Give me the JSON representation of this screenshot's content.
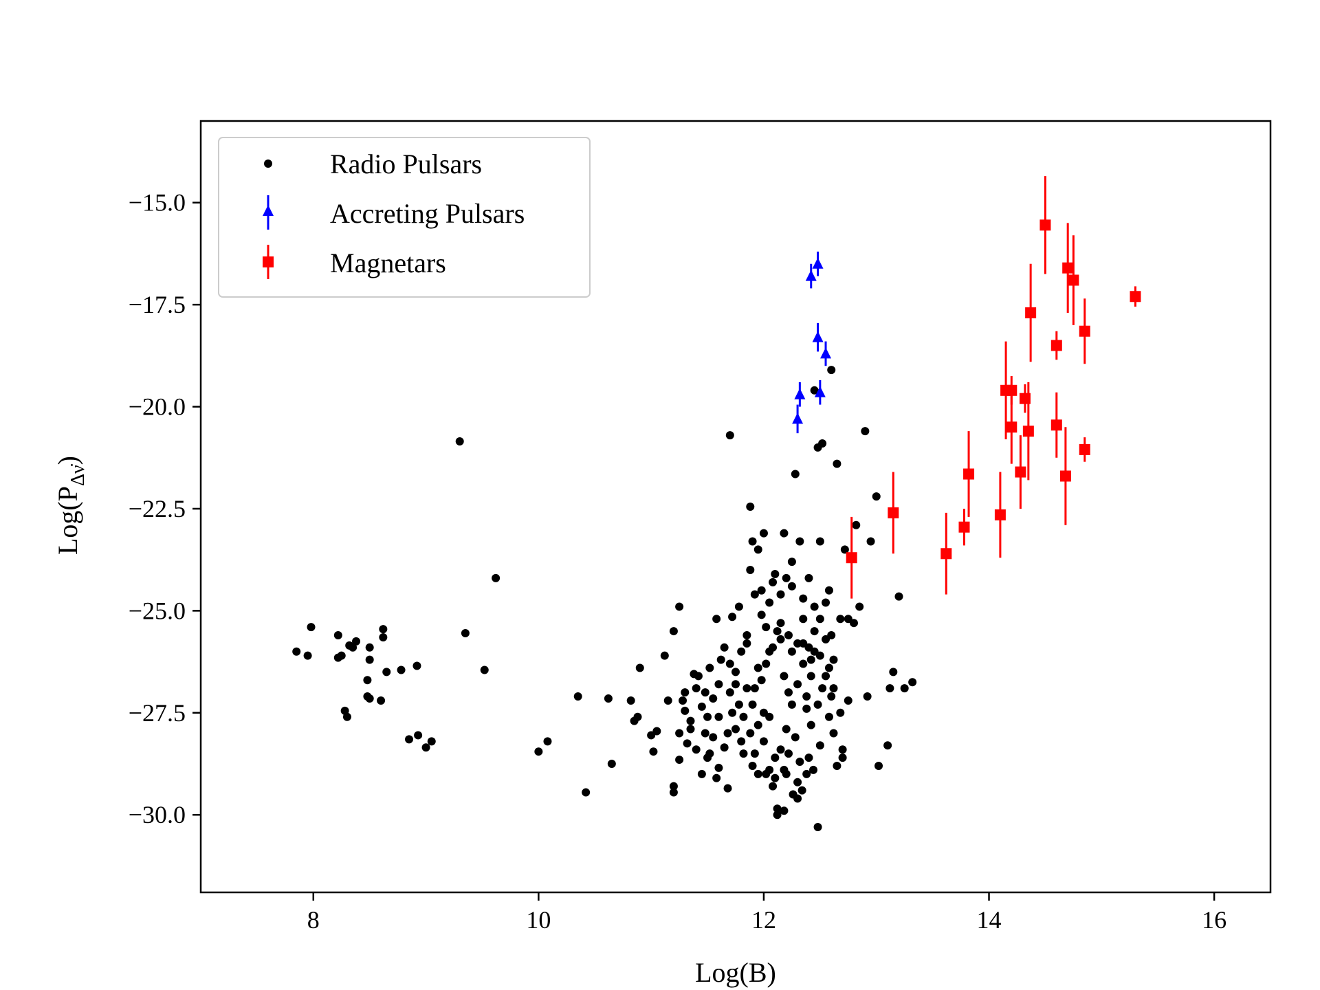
{
  "chart_data": {
    "type": "scatter",
    "xlabel": "Log(B)",
    "ylabel_main": "Log(P",
    "ylabel_sub": "Δν̇",
    "ylabel_close": ")",
    "xlim": [
      7.0,
      16.5
    ],
    "ylim": [
      -31.9,
      -13.0
    ],
    "xticks": [
      8,
      10,
      12,
      14,
      16
    ],
    "xtick_labels": [
      "8",
      "10",
      "12",
      "14",
      "16"
    ],
    "yticks": [
      -15.0,
      -17.5,
      -20.0,
      -22.5,
      -25.0,
      -27.5,
      -30.0
    ],
    "ytick_labels": [
      "−15.0",
      "−17.5",
      "−20.0",
      "−22.5",
      "−25.0",
      "−27.5",
      "−30.0"
    ],
    "grid": false,
    "legend_position": "top-left",
    "series": [
      {
        "name": "Radio Pulsars",
        "marker": "circle",
        "color": "#000000",
        "points": [
          [
            7.85,
            -26.0
          ],
          [
            7.98,
            -25.4
          ],
          [
            7.95,
            -26.1
          ],
          [
            8.22,
            -25.6
          ],
          [
            8.22,
            -26.15
          ],
          [
            8.25,
            -26.1
          ],
          [
            8.32,
            -25.85
          ],
          [
            8.38,
            -25.75
          ],
          [
            8.35,
            -25.9
          ],
          [
            8.5,
            -25.9
          ],
          [
            8.5,
            -26.2
          ],
          [
            8.62,
            -25.45
          ],
          [
            8.62,
            -25.65
          ],
          [
            8.65,
            -26.5
          ],
          [
            8.48,
            -26.7
          ],
          [
            8.48,
            -27.1
          ],
          [
            8.5,
            -27.15
          ],
          [
            8.6,
            -27.2
          ],
          [
            8.28,
            -27.45
          ],
          [
            8.3,
            -27.6
          ],
          [
            8.78,
            -26.45
          ],
          [
            8.92,
            -26.35
          ],
          [
            8.85,
            -28.15
          ],
          [
            8.93,
            -28.05
          ],
          [
            9.0,
            -28.35
          ],
          [
            9.05,
            -28.2
          ],
          [
            9.3,
            -20.85
          ],
          [
            9.35,
            -25.55
          ],
          [
            9.52,
            -26.45
          ],
          [
            9.62,
            -24.2
          ],
          [
            10.0,
            -28.45
          ],
          [
            10.08,
            -28.2
          ],
          [
            10.35,
            -27.1
          ],
          [
            10.42,
            -29.45
          ],
          [
            10.62,
            -27.15
          ],
          [
            10.65,
            -28.75
          ],
          [
            10.82,
            -27.2
          ],
          [
            10.85,
            -27.7
          ],
          [
            10.9,
            -26.4
          ],
          [
            10.88,
            -27.6
          ],
          [
            11.0,
            -28.05
          ],
          [
            11.02,
            -28.45
          ],
          [
            11.05,
            -27.95
          ],
          [
            11.12,
            -26.1
          ],
          [
            11.15,
            -27.2
          ],
          [
            11.2,
            -25.5
          ],
          [
            11.25,
            -24.9
          ],
          [
            11.2,
            -29.3
          ],
          [
            11.2,
            -29.45
          ],
          [
            11.25,
            -28.65
          ],
          [
            11.28,
            -27.2
          ],
          [
            11.3,
            -27.45
          ],
          [
            11.32,
            -28.25
          ],
          [
            11.35,
            -27.9
          ],
          [
            11.38,
            -26.55
          ],
          [
            11.4,
            -26.9
          ],
          [
            11.45,
            -27.35
          ],
          [
            11.48,
            -28.0
          ],
          [
            11.5,
            -27.6
          ],
          [
            11.52,
            -28.5
          ],
          [
            11.55,
            -27.15
          ],
          [
            11.58,
            -25.2
          ],
          [
            11.6,
            -28.85
          ],
          [
            11.62,
            -26.2
          ],
          [
            11.65,
            -28.35
          ],
          [
            11.68,
            -29.35
          ],
          [
            11.7,
            -20.7
          ],
          [
            11.72,
            -25.15
          ],
          [
            11.75,
            -26.8
          ],
          [
            11.78,
            -24.9
          ],
          [
            11.82,
            -28.5
          ],
          [
            11.85,
            -25.6
          ],
          [
            11.88,
            -22.45
          ],
          [
            11.9,
            -23.3
          ],
          [
            11.92,
            -26.9
          ],
          [
            11.95,
            -23.5
          ],
          [
            11.98,
            -24.5
          ],
          [
            12.0,
            -23.1
          ],
          [
            12.02,
            -25.4
          ],
          [
            12.05,
            -27.6
          ],
          [
            12.08,
            -24.3
          ],
          [
            12.1,
            -28.6
          ],
          [
            12.12,
            -29.85
          ],
          [
            12.15,
            -25.3
          ],
          [
            12.18,
            -23.1
          ],
          [
            12.2,
            -24.2
          ],
          [
            12.22,
            -25.6
          ],
          [
            12.25,
            -23.8
          ],
          [
            12.28,
            -21.65
          ],
          [
            12.3,
            -25.8
          ],
          [
            12.32,
            -23.3
          ],
          [
            12.35,
            -25.2
          ],
          [
            12.38,
            -27.4
          ],
          [
            12.4,
            -24.2
          ],
          [
            12.42,
            -26.2
          ],
          [
            12.45,
            -19.6
          ],
          [
            12.48,
            -21.0
          ],
          [
            12.5,
            -23.3
          ],
          [
            12.52,
            -20.9
          ],
          [
            12.55,
            -25.7
          ],
          [
            12.58,
            -24.5
          ],
          [
            12.6,
            -19.1
          ],
          [
            12.62,
            -28.0
          ],
          [
            12.65,
            -21.4
          ],
          [
            12.68,
            -27.5
          ],
          [
            12.7,
            -28.4
          ],
          [
            12.72,
            -23.5
          ],
          [
            12.75,
            -25.2
          ],
          [
            12.78,
            -23.7
          ],
          [
            12.8,
            -25.3
          ],
          [
            12.82,
            -22.9
          ],
          [
            12.85,
            -24.9
          ],
          [
            12.9,
            -20.6
          ],
          [
            12.92,
            -27.1
          ],
          [
            12.95,
            -23.3
          ],
          [
            13.0,
            -22.2
          ],
          [
            13.02,
            -28.8
          ],
          [
            13.1,
            -28.3
          ],
          [
            13.12,
            -26.9
          ],
          [
            13.15,
            -26.5
          ],
          [
            13.2,
            -24.65
          ],
          [
            13.25,
            -26.9
          ],
          [
            13.32,
            -26.75
          ],
          [
            12.48,
            -30.3
          ],
          [
            12.3,
            -29.6
          ],
          [
            12.18,
            -29.9
          ],
          [
            12.12,
            -30.0
          ],
          [
            11.95,
            -29.0
          ],
          [
            11.9,
            -28.8
          ],
          [
            11.8,
            -28.2
          ],
          [
            11.75,
            -27.9
          ],
          [
            11.72,
            -27.5
          ],
          [
            11.7,
            -27.0
          ],
          [
            11.75,
            -26.5
          ],
          [
            11.8,
            -26.0
          ],
          [
            11.85,
            -25.8
          ],
          [
            11.9,
            -27.3
          ],
          [
            11.95,
            -27.8
          ],
          [
            12.0,
            -28.2
          ],
          [
            12.05,
            -28.9
          ],
          [
            12.1,
            -29.1
          ],
          [
            12.15,
            -28.4
          ],
          [
            12.2,
            -27.9
          ],
          [
            12.25,
            -27.3
          ],
          [
            12.3,
            -26.8
          ],
          [
            12.35,
            -26.3
          ],
          [
            12.4,
            -25.9
          ],
          [
            12.45,
            -25.5
          ],
          [
            12.5,
            -26.1
          ],
          [
            12.55,
            -26.6
          ],
          [
            12.6,
            -27.1
          ],
          [
            12.65,
            -28.8
          ],
          [
            12.7,
            -28.6
          ],
          [
            12.75,
            -27.2
          ],
          [
            12.4,
            -28.6
          ],
          [
            12.3,
            -29.2
          ],
          [
            12.2,
            -29.0
          ],
          [
            12.0,
            -27.5
          ],
          [
            11.98,
            -26.7
          ],
          [
            12.02,
            -26.3
          ],
          [
            12.08,
            -25.9
          ],
          [
            12.12,
            -25.5
          ],
          [
            12.18,
            -26.6
          ],
          [
            12.22,
            -27.0
          ],
          [
            12.28,
            -28.1
          ],
          [
            12.32,
            -28.7
          ],
          [
            12.38,
            -29.0
          ],
          [
            12.42,
            -27.8
          ],
          [
            12.48,
            -27.3
          ],
          [
            12.52,
            -26.9
          ],
          [
            12.58,
            -26.4
          ],
          [
            12.62,
            -26.9
          ],
          [
            12.68,
            -25.2
          ],
          [
            11.6,
            -27.6
          ],
          [
            11.55,
            -28.1
          ],
          [
            11.5,
            -28.6
          ],
          [
            11.45,
            -29.0
          ],
          [
            11.4,
            -28.4
          ],
          [
            11.35,
            -27.7
          ],
          [
            11.3,
            -27.0
          ],
          [
            11.25,
            -28.0
          ],
          [
            11.6,
            -26.8
          ],
          [
            11.65,
            -25.9
          ],
          [
            11.7,
            -26.3
          ],
          [
            11.88,
            -24.0
          ],
          [
            11.92,
            -24.6
          ],
          [
            11.98,
            -25.1
          ],
          [
            12.05,
            -24.8
          ],
          [
            12.1,
            -24.1
          ],
          [
            12.15,
            -24.6
          ],
          [
            12.25,
            -24.4
          ],
          [
            12.35,
            -24.7
          ],
          [
            12.45,
            -24.9
          ],
          [
            12.55,
            -24.8
          ],
          [
            12.6,
            -25.6
          ],
          [
            12.42,
            -26.6
          ],
          [
            12.38,
            -27.1
          ],
          [
            12.22,
            -28.5
          ],
          [
            12.18,
            -28.9
          ],
          [
            12.08,
            -29.3
          ],
          [
            12.02,
            -29.0
          ],
          [
            11.92,
            -28.5
          ],
          [
            11.88,
            -28.0
          ],
          [
            11.82,
            -27.6
          ],
          [
            11.78,
            -27.3
          ],
          [
            11.85,
            -26.9
          ],
          [
            11.95,
            -26.4
          ],
          [
            12.05,
            -26.0
          ],
          [
            12.15,
            -25.7
          ],
          [
            12.25,
            -26.0
          ],
          [
            12.35,
            -25.8
          ],
          [
            12.45,
            -26.0
          ],
          [
            12.5,
            -25.2
          ],
          [
            12.62,
            -26.2
          ],
          [
            12.58,
            -27.6
          ],
          [
            12.5,
            -28.3
          ],
          [
            12.44,
            -28.9
          ],
          [
            12.34,
            -29.4
          ],
          [
            12.26,
            -29.5
          ],
          [
            11.68,
            -28.0
          ],
          [
            11.58,
            -29.1
          ],
          [
            11.48,
            -27.0
          ],
          [
            11.42,
            -26.6
          ],
          [
            11.52,
            -26.4
          ]
        ]
      },
      {
        "name": "Accreting Pulsars",
        "marker": "triangle",
        "color": "#0000ff",
        "points": [
          [
            12.3,
            -20.3,
            0.35
          ],
          [
            12.32,
            -19.7,
            0.3
          ],
          [
            12.42,
            -16.8,
            0.3
          ],
          [
            12.48,
            -16.5,
            0.3
          ],
          [
            12.48,
            -18.3,
            0.35
          ],
          [
            12.5,
            -19.65,
            0.3
          ],
          [
            12.55,
            -18.7,
            0.3
          ]
        ]
      },
      {
        "name": "Magnetars",
        "marker": "square",
        "color": "#ff0000",
        "points": [
          [
            12.78,
            -23.7,
            1.0
          ],
          [
            13.15,
            -22.6,
            1.0
          ],
          [
            13.62,
            -23.6,
            1.0
          ],
          [
            13.78,
            -22.95,
            0.45
          ],
          [
            13.82,
            -21.65,
            1.05
          ],
          [
            14.1,
            -22.65,
            1.05
          ],
          [
            14.15,
            -19.6,
            1.2
          ],
          [
            14.2,
            -19.6,
            0.35
          ],
          [
            14.2,
            -20.5,
            0.9
          ],
          [
            14.28,
            -21.6,
            0.9
          ],
          [
            14.32,
            -19.8,
            0.35
          ],
          [
            14.35,
            -20.6,
            1.2
          ],
          [
            14.37,
            -17.7,
            1.2
          ],
          [
            14.5,
            -15.55,
            1.2
          ],
          [
            14.6,
            -18.5,
            0.35
          ],
          [
            14.6,
            -20.45,
            0.8
          ],
          [
            14.68,
            -21.7,
            1.2
          ],
          [
            14.7,
            -16.6,
            1.1
          ],
          [
            14.75,
            -16.9,
            1.1
          ],
          [
            14.85,
            -18.15,
            0.8
          ],
          [
            14.85,
            -21.05,
            0.3
          ],
          [
            15.3,
            -17.3,
            0.25
          ]
        ]
      }
    ]
  }
}
